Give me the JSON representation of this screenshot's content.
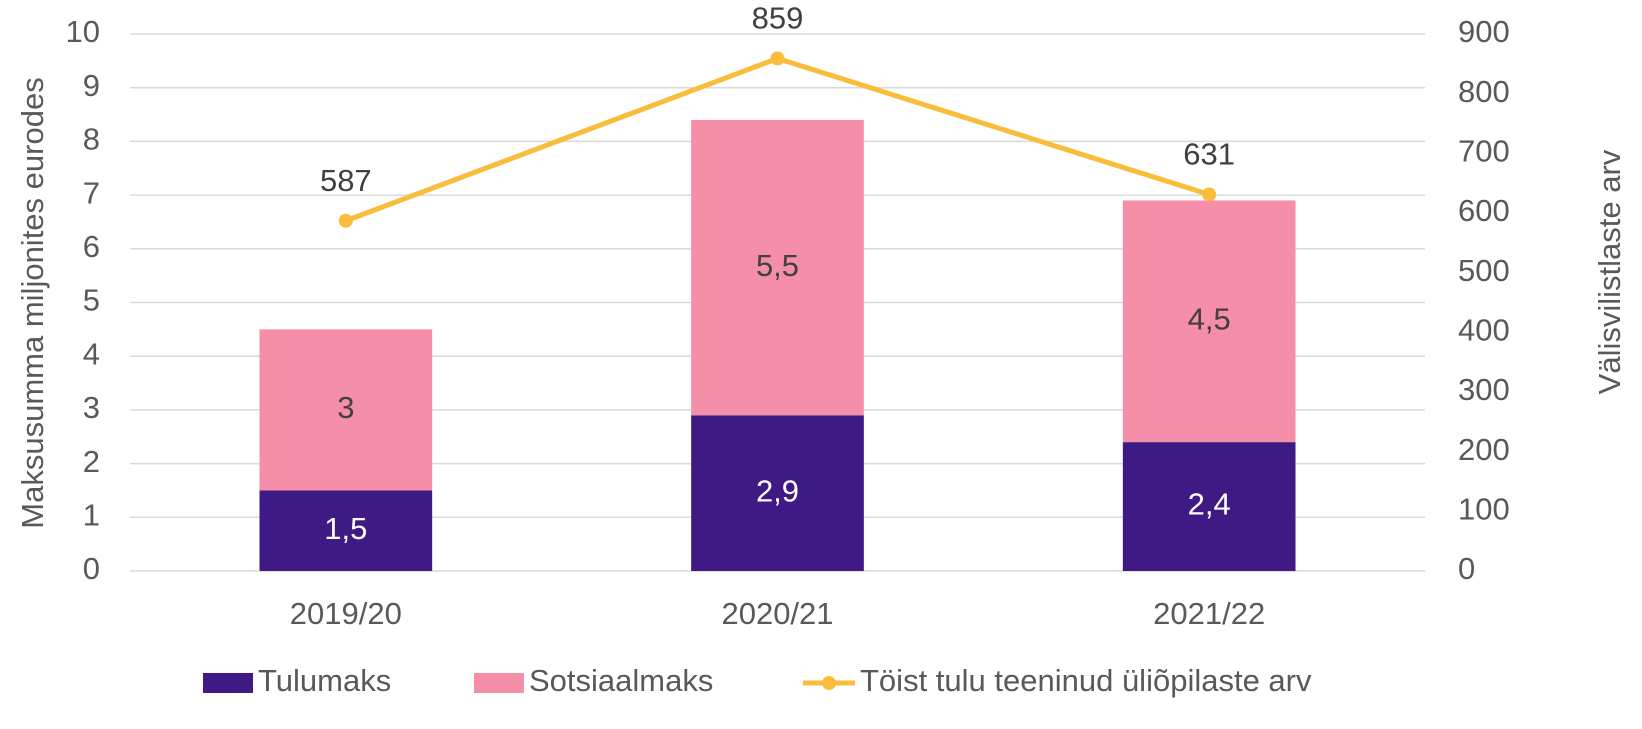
{
  "chart_data": {
    "type": "bar",
    "stacked": true,
    "categories": [
      "2019/20",
      "2020/21",
      "2021/22"
    ],
    "series": [
      {
        "name": "Tulumaks",
        "color": "#3f1a84",
        "values": [
          1.5,
          2.9,
          2.4
        ],
        "value_labels": [
          "1,5",
          "2,9",
          "2,4"
        ],
        "label_color": "#ffffff"
      },
      {
        "name": "Sotsiaalmaks",
        "color": "#f48ea9",
        "values": [
          3,
          5.5,
          4.5
        ],
        "value_labels": [
          "3",
          "5,5",
          "4,5"
        ],
        "label_color": "#404040"
      },
      {
        "name": "Töist tulu teeninud üliõpilaste arv",
        "type": "line",
        "axis": "y2",
        "color": "#f9bc3b",
        "values": [
          587,
          859,
          631
        ],
        "label_color": "#404040"
      }
    ],
    "ylabel": "Maksusumma miljonites eurodes",
    "y2label": "Välisvilistlaste arv",
    "ylim": [
      0,
      10
    ],
    "yticks": [
      0,
      1,
      2,
      3,
      4,
      5,
      6,
      7,
      8,
      9,
      10
    ],
    "y2lim": [
      0,
      900
    ],
    "y2ticks": [
      0,
      100,
      200,
      300,
      400,
      500,
      600,
      700,
      800,
      900
    ],
    "grid": true,
    "legend": "bottom"
  }
}
